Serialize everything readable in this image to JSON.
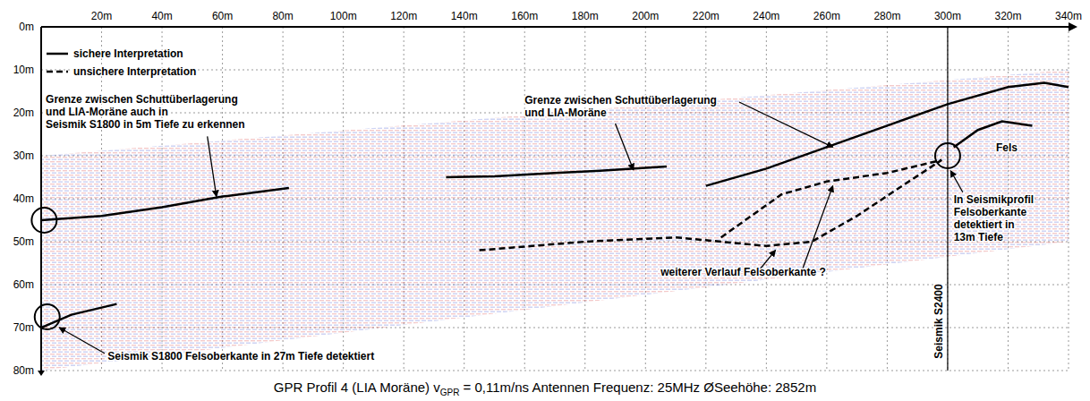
{
  "chart_data": {
    "type": "line",
    "title_parts": [
      "GPR Profil 4 (LIA Moräne) v",
      "GPR",
      " = 0,11m/ns Antennen Frequenz: 25MHz ØSeehöhe: 2852m"
    ],
    "xlim": [
      0,
      340
    ],
    "xticks": [
      {
        "value": 20,
        "label": "20m"
      },
      {
        "value": 40,
        "label": "40m"
      },
      {
        "value": 60,
        "label": "60m"
      },
      {
        "value": 80,
        "label": "80m"
      },
      {
        "value": 100,
        "label": "100m"
      },
      {
        "value": 120,
        "label": "120m"
      },
      {
        "value": 140,
        "label": "140m"
      },
      {
        "value": 160,
        "label": "160m"
      },
      {
        "value": 180,
        "label": "180m"
      },
      {
        "value": 200,
        "label": "200m"
      },
      {
        "value": 220,
        "label": "220m"
      },
      {
        "value": 240,
        "label": "240m"
      },
      {
        "value": 260,
        "label": "260m"
      },
      {
        "value": 280,
        "label": "280m"
      },
      {
        "value": 300,
        "label": "300m"
      },
      {
        "value": 320,
        "label": "320m"
      },
      {
        "value": 340,
        "label": "340m"
      }
    ],
    "ylim": [
      0,
      80
    ],
    "yticks": [
      {
        "value": 0,
        "label": "0m"
      },
      {
        "value": 10,
        "label": "10m"
      },
      {
        "value": 20,
        "label": "20m"
      },
      {
        "value": 30,
        "label": "30m"
      },
      {
        "value": 40,
        "label": "40m"
      },
      {
        "value": 50,
        "label": "50m"
      },
      {
        "value": 60,
        "label": "60m"
      },
      {
        "value": 70,
        "label": "70m"
      },
      {
        "value": 80,
        "label": "80m"
      }
    ],
    "grid": true,
    "legend": "upper left",
    "legend_entries": [
      {
        "name": "sichere Interpretation",
        "line_style": "solid"
      },
      {
        "name": "unsichere Interpretation",
        "line_style": "dashed"
      }
    ],
    "series": [
      {
        "line_style": "solid",
        "x": [
          0,
          20,
          40,
          60,
          82
        ],
        "values": [
          45,
          44,
          42,
          39.5,
          37.5
        ]
      },
      {
        "line_style": "solid",
        "x": [
          134,
          150,
          170,
          185,
          207
        ],
        "values": [
          35,
          34.8,
          34,
          33.5,
          32.5
        ]
      },
      {
        "line_style": "solid",
        "x": [
          220,
          240,
          260,
          280,
          300,
          320,
          332,
          340
        ],
        "values": [
          37,
          33,
          28,
          23,
          18,
          14,
          13,
          14
        ]
      },
      {
        "line_style": "solid",
        "x": [
          0,
          10,
          25
        ],
        "values": [
          70,
          67,
          64.5
        ]
      },
      {
        "line_style": "solid",
        "x": [
          302,
          310,
          318,
          328
        ],
        "values": [
          28,
          24,
          22,
          23
        ]
      },
      {
        "line_style": "dashed",
        "x": [
          145,
          180,
          210,
          240,
          255,
          270,
          285,
          298
        ],
        "values": [
          52,
          50,
          49,
          51,
          50,
          44,
          37,
          31
        ]
      },
      {
        "line_style": "dashed",
        "x": [
          225,
          235,
          245,
          260,
          280,
          298
        ],
        "values": [
          49,
          44,
          39,
          36,
          34,
          31
        ]
      }
    ],
    "radargram": {
      "x": [
        0,
        340
      ],
      "top": [
        30,
        10
      ],
      "bottom": [
        80,
        50
      ]
    },
    "circles": [
      {
        "x": 1,
        "y": 45
      },
      {
        "x": 2,
        "y": 67.5
      },
      {
        "x": 300,
        "y": 30
      }
    ],
    "reference_lines": [
      {
        "x": 300,
        "label": "Seismik S2400"
      }
    ],
    "annotations": [
      {
        "lines": [
          "Grenze zwischen Schuttüberlagerung",
          "und LIA-Moräne auch in",
          "Seismik S1800 in 5m Tiefe zu erkennen"
        ],
        "at": [
          1.5,
          17.7
        ],
        "arrows": [
          {
            "from": [
              55,
              25.5
            ],
            "to": [
              58,
              39.5
            ]
          }
        ]
      },
      {
        "lines": [
          "Grenze zwischen Schuttüberlagerung",
          "und LIA-Moräne"
        ],
        "at": [
          160,
          18
        ],
        "arrows": [
          {
            "from": [
              190,
              22.5
            ],
            "to": [
              196,
              33.3
            ]
          },
          {
            "from": [
              231,
              17.5
            ],
            "to": [
              262,
              28
            ]
          }
        ]
      },
      {
        "lines": [
          "Fels"
        ],
        "at": [
          316,
          29
        ],
        "arrows": []
      },
      {
        "lines": [
          "In Seismikprofil",
          "Felsoberkante",
          "detektiert in",
          "13m Tiefe"
        ],
        "at": [
          302,
          41
        ],
        "arrows": [
          {
            "from": [
              305,
              38.5
            ],
            "to": [
              301,
              33.5
            ]
          }
        ]
      },
      {
        "lines": [
          "weiterer Verlauf Felsoberkante ?"
        ],
        "at": [
          205,
          58
        ],
        "arrows": [
          {
            "from": [
              238,
              56.3
            ],
            "to": [
              243,
              52
            ]
          },
          {
            "from": [
              252,
              56.3
            ],
            "to": [
              262,
              37
            ]
          }
        ]
      },
      {
        "lines": [
          "Seismik S1800 Felsoberkante in 27m Tiefe detektiert"
        ],
        "at": [
          22,
          77.5
        ],
        "arrows": [
          {
            "from": [
              21,
              76
            ],
            "to": [
              6,
              70
            ]
          }
        ]
      }
    ]
  }
}
